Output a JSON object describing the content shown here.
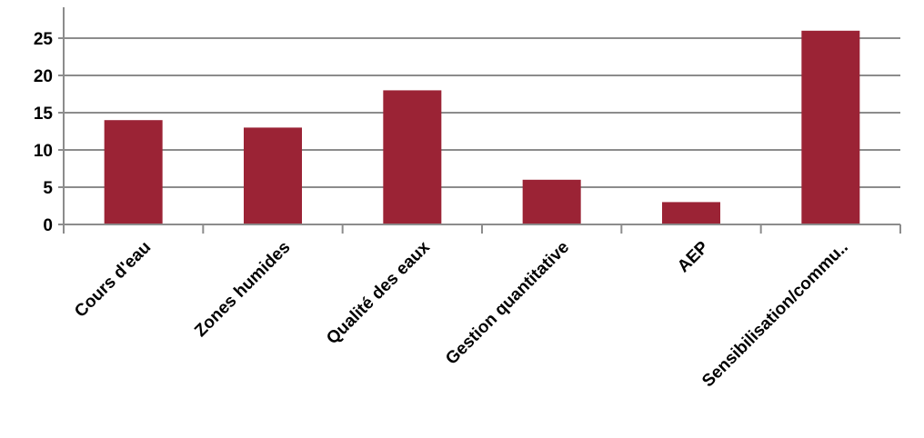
{
  "chart_data": {
    "type": "bar",
    "title": "",
    "xlabel": "",
    "ylabel": "",
    "categories": [
      "Cours d'eau",
      "Zones humides",
      "Qualité des eaux",
      "Gestion quantitative",
      "AEP",
      "Sensibilisation/commu.."
    ],
    "values": [
      14,
      13,
      18,
      6,
      3,
      26
    ],
    "ylim": [
      0,
      30
    ],
    "yticks": [
      0,
      5,
      10,
      15,
      20,
      25
    ],
    "grid": true,
    "legend": "none",
    "bar_color": "#9B2335",
    "grid_color": "#8C8C8C"
  }
}
